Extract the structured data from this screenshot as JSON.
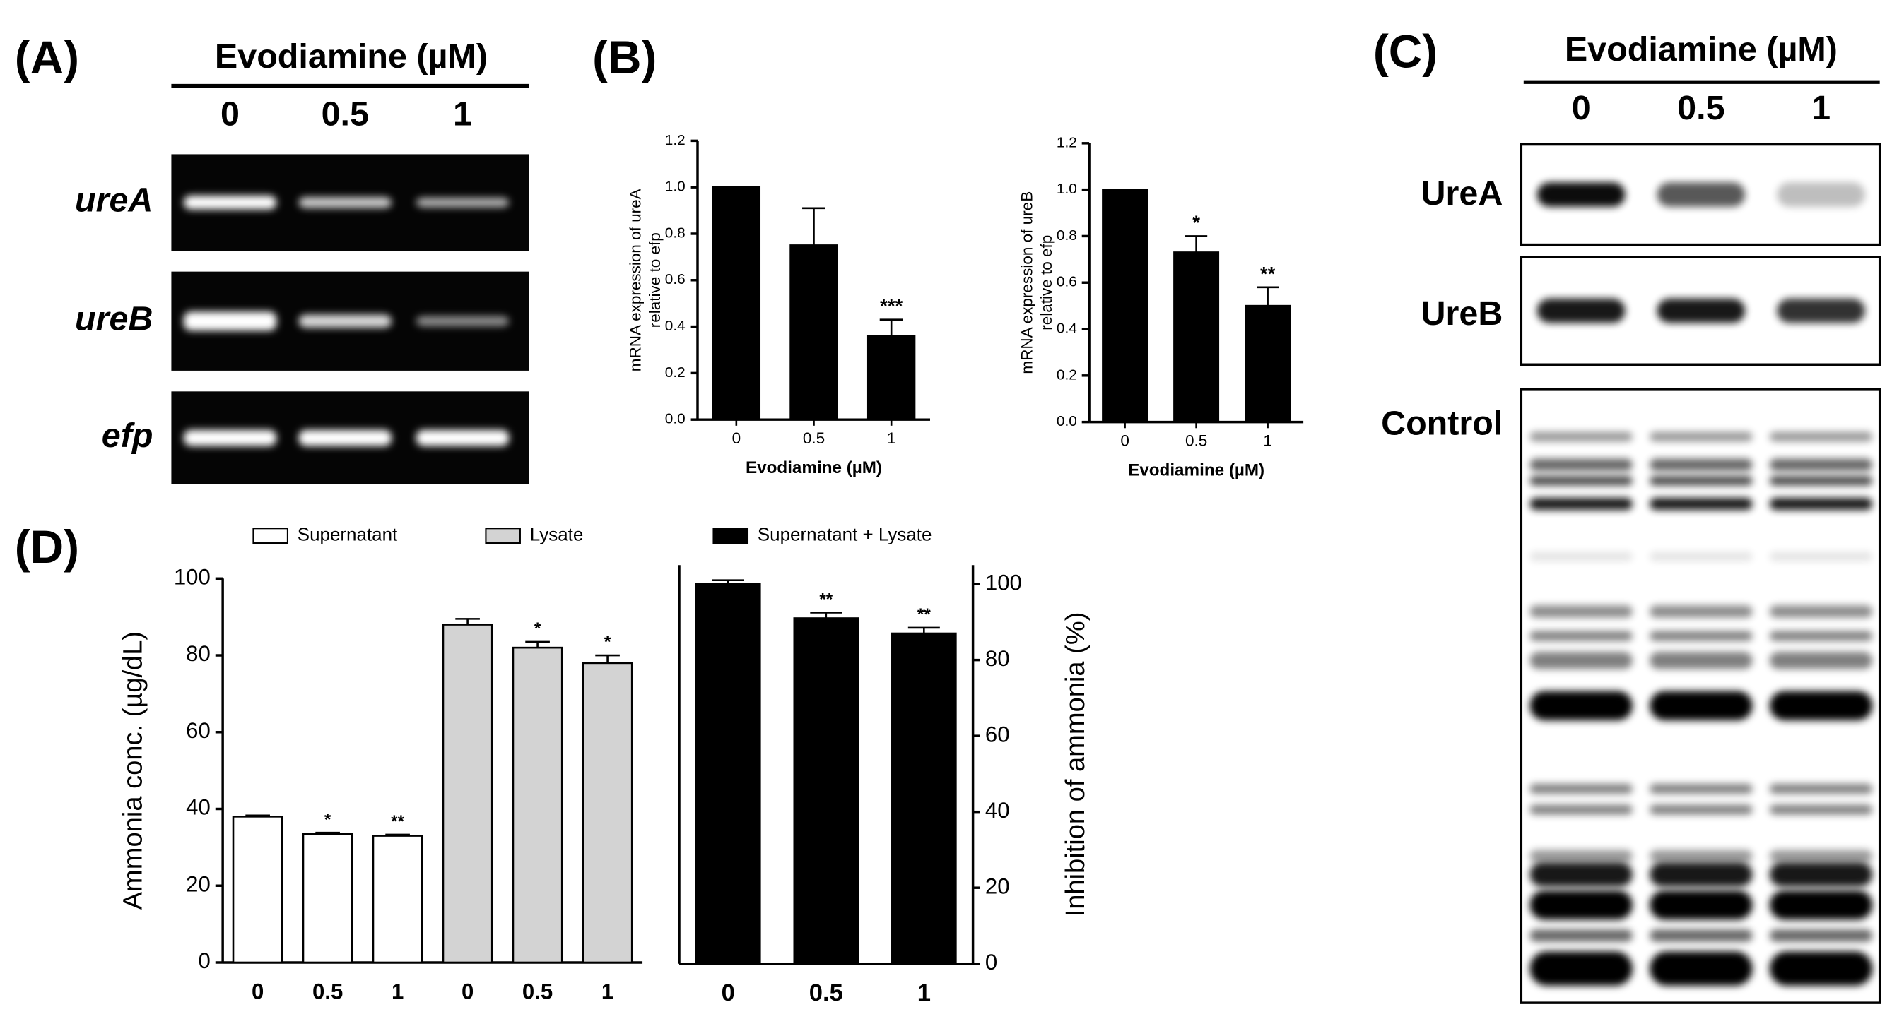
{
  "panel_labels": [
    "(A)",
    "(B)",
    "(C)",
    "(D)"
  ],
  "gel_A": {
    "header": "Evodiamine (µM)",
    "lanes": [
      "0",
      "0.5",
      "1"
    ],
    "rows": [
      "ureA",
      "ureB",
      "efp"
    ]
  },
  "blot_C": {
    "header": "Evodiamine (µM)",
    "lanes": [
      "0",
      "0.5",
      "1"
    ],
    "rows": [
      "UreA",
      "UreB",
      "Control"
    ]
  },
  "chart_data": [
    {
      "type": "bar",
      "ylabel": [
        "mRNA expression of ureA",
        "relative to efp"
      ],
      "xlabel": "Evodiamine (µM)",
      "categories": [
        "0",
        "0.5",
        "1"
      ],
      "values": [
        1.0,
        0.75,
        0.36
      ],
      "errors": [
        null,
        0.16,
        0.07
      ],
      "significance": [
        null,
        null,
        "***"
      ],
      "color": "#000000",
      "ylim": [
        0,
        1.2
      ],
      "yticks": [
        {
          "value": 0,
          "label": "0.0"
        },
        0.2,
        0.4,
        0.6,
        0.8,
        {
          "value": 1,
          "label": "1.0"
        },
        1.2
      ]
    },
    {
      "type": "bar",
      "ylabel": [
        "mRNA expression of ureB",
        "relative to efp"
      ],
      "xlabel": "Evodiamine (µM)",
      "categories": [
        "0",
        "0.5",
        "1"
      ],
      "values": [
        1.0,
        0.73,
        0.5
      ],
      "errors": [
        null,
        0.07,
        0.08
      ],
      "significance": [
        null,
        "*",
        "**"
      ],
      "color": "#000000",
      "ylim": [
        0,
        1.2
      ],
      "yticks": [
        {
          "value": 0,
          "label": "0.0"
        },
        0.2,
        0.4,
        0.6,
        0.8,
        {
          "value": 1,
          "label": "1.0"
        },
        1.2
      ]
    },
    {
      "type": "bar",
      "ylabel": "Ammonia conc. (µg/dL)",
      "categories": [
        "0",
        "0.5",
        "1"
      ],
      "legend": "top",
      "series": [
        {
          "name": "Supernatant",
          "color": "#ffffff",
          "values": [
            38,
            33.5,
            33
          ],
          "errors": [
            0.3,
            0.3,
            0.3
          ],
          "significance": [
            null,
            "*",
            "**"
          ]
        },
        {
          "name": "Lysate",
          "color": "#d3d3d3",
          "values": [
            88,
            82,
            78
          ],
          "errors": [
            1.5,
            1.5,
            2
          ],
          "significance": [
            null,
            "*",
            "*"
          ]
        }
      ],
      "ylim": [
        0,
        100
      ],
      "yticks": [
        0,
        20,
        40,
        60,
        80,
        100
      ]
    },
    {
      "type": "bar",
      "y2label": "Inhibition of ammonia (%)",
      "categories": [
        "0",
        "0.5",
        "1"
      ],
      "legend": "top",
      "series": [
        {
          "name": "Supernatant + Lysate",
          "color": "#000000",
          "axis": "y2",
          "values": [
            100,
            91,
            87
          ],
          "errors": [
            1,
            1.5,
            1.5
          ],
          "significance": [
            null,
            "**",
            "**"
          ]
        }
      ],
      "y2lim": [
        0,
        105
      ],
      "y2ticks": [
        0,
        20,
        40,
        60,
        80,
        100
      ]
    }
  ]
}
